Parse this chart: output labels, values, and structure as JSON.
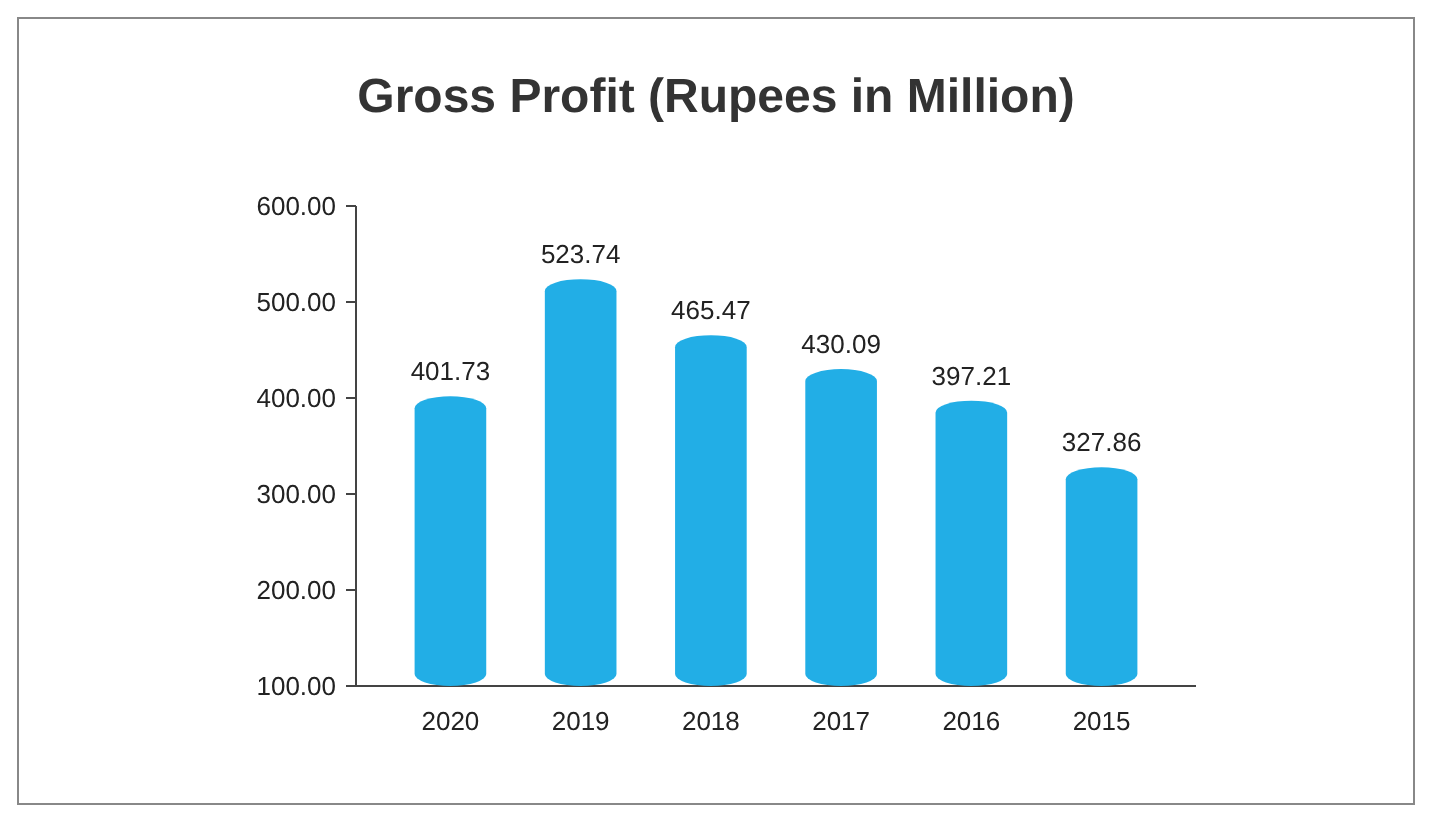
{
  "chart_data": {
    "type": "bar",
    "title": "Gross Profit (Rupees in Million)",
    "categories": [
      "2020",
      "2019",
      "2018",
      "2017",
      "2016",
      "2015"
    ],
    "values": [
      401.73,
      523.74,
      465.47,
      430.09,
      397.21,
      327.86
    ],
    "color": "#22aee6",
    "ylim": [
      100,
      600
    ],
    "yticks": [
      {
        "value": 100,
        "label": "100.00"
      },
      {
        "value": 200,
        "label": "200.00"
      },
      {
        "value": 300,
        "label": "300.00"
      },
      {
        "value": 400,
        "label": "400.00"
      },
      {
        "value": 500,
        "label": "500.00"
      },
      {
        "value": 600,
        "label": "600.00"
      }
    ],
    "data_labels": true
  }
}
